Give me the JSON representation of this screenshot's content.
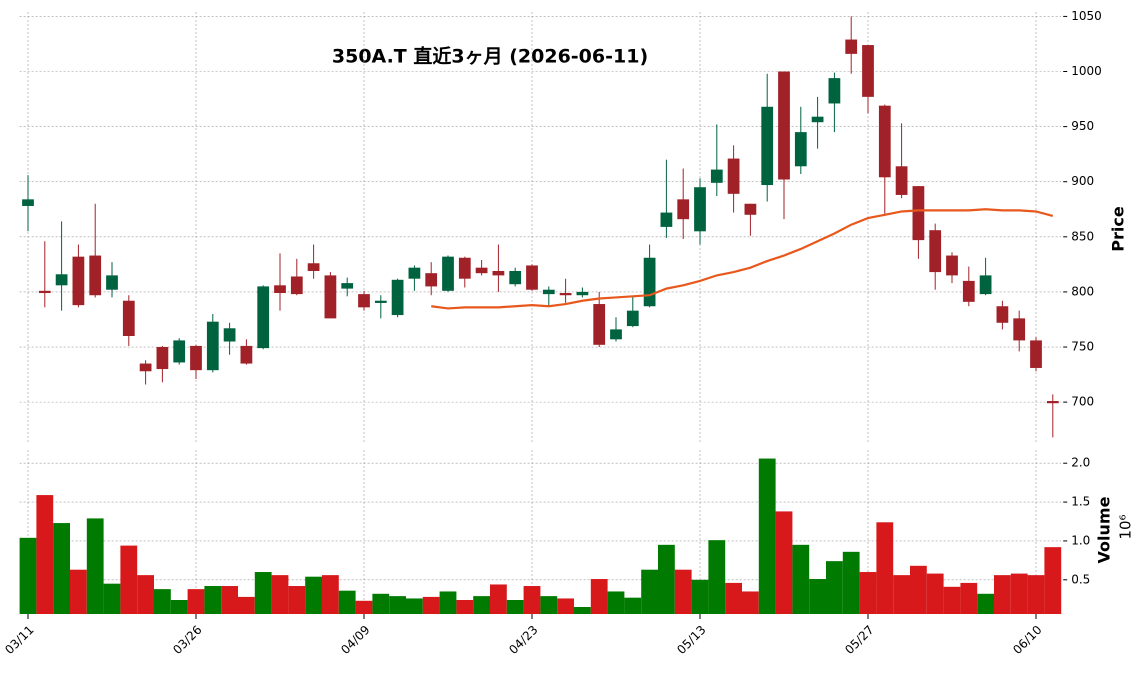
{
  "chart_data": [
    {
      "type": "candlestick",
      "title": "350A.T  直近3ヶ月  (2026-06-11)",
      "ylabel": "Price",
      "up_color": "#006340",
      "down_color": "#a02128",
      "open": [
        878,
        801,
        806,
        832,
        833,
        802,
        792,
        735,
        750,
        736,
        751,
        729,
        755,
        751,
        749,
        806,
        814,
        826,
        815,
        803,
        798,
        790,
        779,
        812,
        817,
        801,
        831,
        822,
        819,
        807,
        824,
        798,
        799,
        797,
        789,
        757,
        769,
        787,
        859,
        884,
        855,
        899,
        921,
        880,
        897,
        1000,
        914,
        954,
        971,
        1029,
        1024,
        969,
        914,
        896,
        856,
        833,
        810,
        798,
        787,
        776,
        756,
        701
      ],
      "high": [
        906,
        846,
        864,
        843,
        880,
        827,
        797,
        738,
        751,
        758,
        752,
        780,
        772,
        757,
        806,
        835,
        830,
        843,
        818,
        813,
        801,
        797,
        812,
        824,
        827,
        833,
        832,
        829,
        843,
        822,
        825,
        805,
        812,
        804,
        800,
        777,
        796,
        843,
        920,
        912,
        903,
        952,
        933,
        880,
        998,
        1000,
        968,
        977,
        999,
        1050,
        1024,
        970,
        953,
        896,
        862,
        836,
        823,
        831,
        792,
        783,
        759,
        707
      ],
      "low": [
        855,
        786,
        783,
        786,
        795,
        795,
        751,
        716,
        718,
        734,
        721,
        727,
        743,
        734,
        748,
        783,
        797,
        812,
        776,
        796,
        783,
        776,
        777,
        801,
        797,
        800,
        804,
        815,
        800,
        805,
        801,
        787,
        790,
        795,
        750,
        755,
        768,
        786,
        849,
        848,
        843,
        887,
        872,
        851,
        882,
        866,
        907,
        930,
        945,
        998,
        962,
        869,
        885,
        830,
        802,
        808,
        787,
        797,
        766,
        746,
        728,
        668
      ],
      "close": [
        884,
        799,
        816,
        788,
        797,
        815,
        760,
        728,
        730,
        756,
        729,
        773,
        767,
        735,
        805,
        799,
        798,
        819,
        776,
        808,
        786,
        792,
        811,
        822,
        805,
        832,
        812,
        817,
        815,
        819,
        802,
        802,
        797,
        800,
        752,
        766,
        783,
        831,
        872,
        866,
        895,
        911,
        889,
        870,
        968,
        902,
        945,
        959,
        994,
        1016,
        977,
        904,
        888,
        847,
        818,
        815,
        791,
        815,
        772,
        756,
        731,
        699
      ],
      "line_color": "#e8581c",
      "line_values": [
        null,
        null,
        null,
        null,
        null,
        null,
        null,
        null,
        null,
        null,
        null,
        null,
        null,
        null,
        null,
        null,
        null,
        null,
        null,
        null,
        null,
        null,
        null,
        null,
        787,
        785,
        786,
        786,
        786,
        787,
        788,
        787,
        789,
        792,
        794,
        795,
        796,
        797,
        803,
        806,
        810,
        815,
        818,
        822,
        828,
        833,
        839,
        846,
        853,
        861,
        867,
        870,
        873,
        874,
        874,
        874,
        874,
        875,
        874,
        874,
        873,
        869
      ],
      "ylim": [
        662,
        1054
      ],
      "yticks": [
        700,
        750,
        800,
        850,
        900,
        950,
        1000,
        1050
      ],
      "grid": true
    },
    {
      "type": "bar",
      "ylabel": "Volume",
      "offset_label": "10⁶",
      "up_color": "#007a00",
      "down_color": "#d7191c",
      "categories": [
        "03/11",
        null,
        null,
        null,
        null,
        null,
        null,
        null,
        null,
        null,
        "03/26",
        null,
        null,
        null,
        null,
        null,
        null,
        null,
        null,
        null,
        "04/09",
        null,
        null,
        null,
        null,
        null,
        null,
        null,
        null,
        null,
        "04/23",
        null,
        null,
        null,
        null,
        null,
        null,
        null,
        null,
        null,
        "05/13",
        null,
        null,
        null,
        null,
        null,
        null,
        null,
        null,
        null,
        "05/27",
        null,
        null,
        null,
        null,
        null,
        null,
        null,
        null,
        null,
        "06/10",
        null
      ],
      "values": [
        1.04,
        1.59,
        1.23,
        0.63,
        1.29,
        0.45,
        0.94,
        0.56,
        0.38,
        0.24,
        0.38,
        0.42,
        0.42,
        0.28,
        0.6,
        0.56,
        0.42,
        0.54,
        0.56,
        0.36,
        0.23,
        0.32,
        0.29,
        0.26,
        0.28,
        0.35,
        0.24,
        0.29,
        0.44,
        0.24,
        0.42,
        0.29,
        0.26,
        0.15,
        0.51,
        0.35,
        0.27,
        0.63,
        0.95,
        0.63,
        0.5,
        1.01,
        0.46,
        0.35,
        2.06,
        1.38,
        0.95,
        0.51,
        0.74,
        0.86,
        0.6,
        1.24,
        0.56,
        0.68,
        0.58,
        0.41,
        0.46,
        0.32,
        0.56,
        0.58,
        0.56,
        0.92
      ],
      "ylim": [
        0.06,
        2.17
      ],
      "yticks": [
        0.5,
        {
          "value": 1,
          "label": "1.0"
        },
        1.5,
        {
          "value": 2,
          "label": "2.0"
        }
      ],
      "grid": true
    }
  ]
}
